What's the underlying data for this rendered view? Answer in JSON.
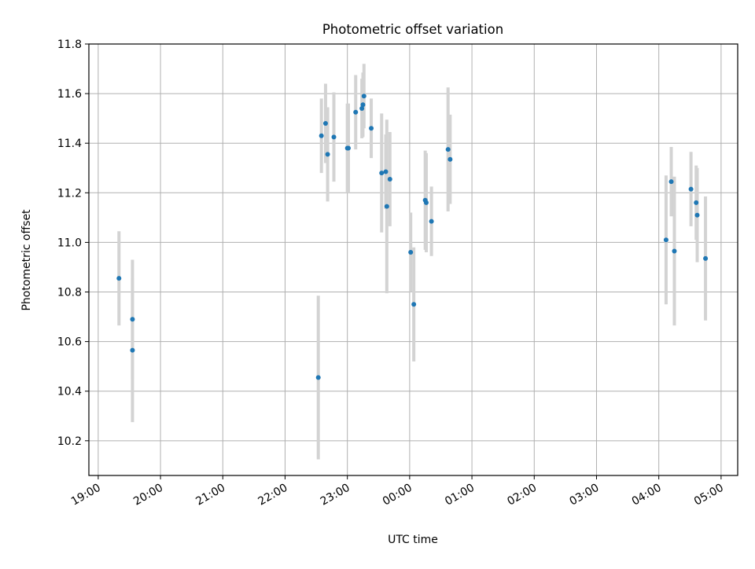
{
  "chart_data": {
    "type": "scatter",
    "title": "Photometric offset variation",
    "xlabel": "UTC time",
    "ylabel": "Photometric offset",
    "x_tick_labels": [
      "19:00",
      "20:00",
      "21:00",
      "22:00",
      "23:00",
      "00:00",
      "01:00",
      "02:00",
      "03:00",
      "04:00",
      "05:00"
    ],
    "y_tick_labels": [
      "10.2",
      "10.4",
      "10.6",
      "10.8",
      "11.0",
      "11.2",
      "11.4",
      "11.6",
      "11.8"
    ],
    "y_ticks": [
      10.2,
      10.4,
      10.6,
      10.8,
      11.0,
      11.2,
      11.4,
      11.6,
      11.8
    ],
    "ylim": [
      10.06,
      11.8
    ],
    "x_unit": "UTC time of day; times after 00:00 fall on the next day",
    "xlim": [
      "18:51",
      "05:16"
    ],
    "grid": true,
    "series": [
      {
        "point_color": "#1f77b4",
        "errorbar_color": "#d3d3d3",
        "points": [
          {
            "x": "19:20",
            "y": 10.855,
            "err": 0.19
          },
          {
            "x": "19:33",
            "y": 10.69,
            "err": 0.24
          },
          {
            "x": "19:33",
            "y": 10.565,
            "err": 0.29
          },
          {
            "x": "22:32",
            "y": 10.455,
            "err": 0.33
          },
          {
            "x": "22:35",
            "y": 11.43,
            "err": 0.15
          },
          {
            "x": "22:39",
            "y": 11.48,
            "err": 0.16
          },
          {
            "x": "22:41",
            "y": 11.355,
            "err": 0.19
          },
          {
            "x": "22:47",
            "y": 11.425,
            "err": 0.18
          },
          {
            "x": "23:00",
            "y": 11.38,
            "err": 0.18
          },
          {
            "x": "23:01",
            "y": 11.38,
            "err": 0.18
          },
          {
            "x": "23:08",
            "y": 11.525,
            "err": 0.15
          },
          {
            "x": "23:14",
            "y": 11.54,
            "err": 0.12
          },
          {
            "x": "23:15",
            "y": 11.555,
            "err": 0.13
          },
          {
            "x": "23:16",
            "y": 11.59,
            "err": 0.13
          },
          {
            "x": "23:23",
            "y": 11.46,
            "err": 0.12
          },
          {
            "x": "23:33",
            "y": 11.28,
            "err": 0.24
          },
          {
            "x": "23:37",
            "y": 11.285,
            "err": 0.15
          },
          {
            "x": "23:38",
            "y": 11.145,
            "err": 0.35
          },
          {
            "x": "23:41",
            "y": 11.255,
            "err": 0.19
          },
          {
            "x": "00:01",
            "y": 10.96,
            "err": 0.16
          },
          {
            "x": "00:04",
            "y": 10.75,
            "err": 0.23
          },
          {
            "x": "00:15",
            "y": 11.17,
            "err": 0.2
          },
          {
            "x": "00:16",
            "y": 11.16,
            "err": 0.2
          },
          {
            "x": "00:21",
            "y": 11.085,
            "err": 0.14
          },
          {
            "x": "00:37",
            "y": 11.375,
            "err": 0.25
          },
          {
            "x": "00:39",
            "y": 11.335,
            "err": 0.18
          },
          {
            "x": "04:07",
            "y": 11.01,
            "err": 0.26
          },
          {
            "x": "04:12",
            "y": 11.245,
            "err": 0.14
          },
          {
            "x": "04:15",
            "y": 10.965,
            "err": 0.3
          },
          {
            "x": "04:31",
            "y": 11.215,
            "err": 0.15
          },
          {
            "x": "04:36",
            "y": 11.16,
            "err": 0.15
          },
          {
            "x": "04:37",
            "y": 11.11,
            "err": 0.19
          },
          {
            "x": "04:45",
            "y": 10.935,
            "err": 0.25
          }
        ]
      }
    ]
  }
}
